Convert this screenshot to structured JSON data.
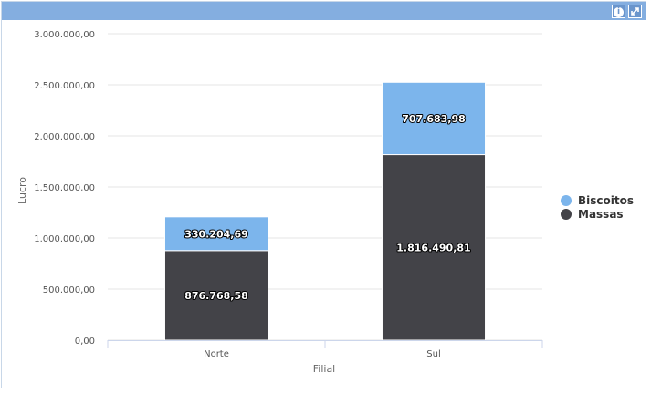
{
  "chart_data": {
    "type": "bar",
    "stacked": true,
    "categories": [
      "Norte",
      "Sul"
    ],
    "series": [
      {
        "name": "Massas",
        "values": [
          876768.58,
          1816490.81
        ],
        "color": "#434348",
        "labels": [
          "876.768,58",
          "1.816.490,81"
        ]
      },
      {
        "name": "Biscoitos",
        "values": [
          330204.69,
          707683.98
        ],
        "color": "#7cb5ec",
        "labels": [
          "330.204,69",
          "707.683,98"
        ]
      }
    ],
    "xlabel": "Filial",
    "ylabel": "Lucro",
    "ylim": [
      0,
      3000000
    ],
    "yticks": [
      0,
      500000,
      1000000,
      1500000,
      2000000,
      2500000,
      3000000
    ],
    "ytick_labels": [
      "0,00",
      "500.000,00",
      "1.000.000,00",
      "1.500.000,00",
      "2.000.000,00",
      "2.500.000,00",
      "3.000.000,00"
    ],
    "legend": [
      {
        "name": "Biscoitos",
        "color": "#7cb5ec"
      },
      {
        "name": "Massas",
        "color": "#434348"
      }
    ],
    "legend_position": "right",
    "grid": true
  },
  "toolbar": {
    "info_icon": "info-icon",
    "expand_icon": "expand-icon"
  }
}
